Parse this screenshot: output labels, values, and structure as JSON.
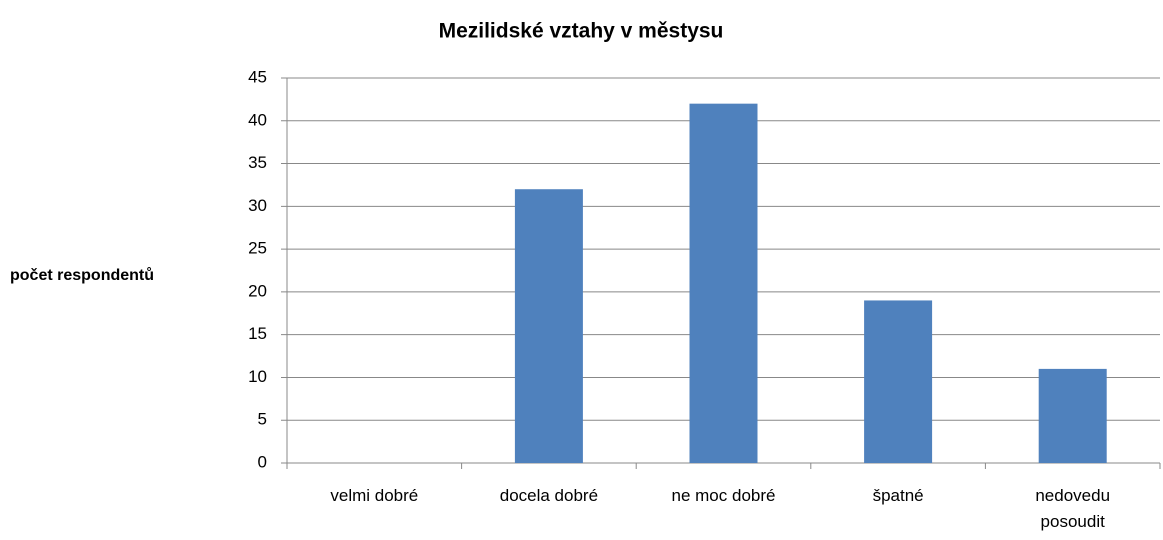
{
  "chart_data": {
    "type": "bar",
    "title": "Mezilidské vztahy v městysu",
    "ylabel": "počet respondentů",
    "categories": [
      "velmi dobré",
      "docela dobré",
      "ne moc dobré",
      "špatné",
      "nedovedu posoudit"
    ],
    "values": [
      0,
      32,
      42,
      19,
      11
    ],
    "color": "#4f81bd",
    "ylim": [
      0,
      45
    ],
    "yticks": [
      0,
      5,
      10,
      15,
      20,
      25,
      30,
      35,
      40,
      45
    ],
    "grid": true
  }
}
